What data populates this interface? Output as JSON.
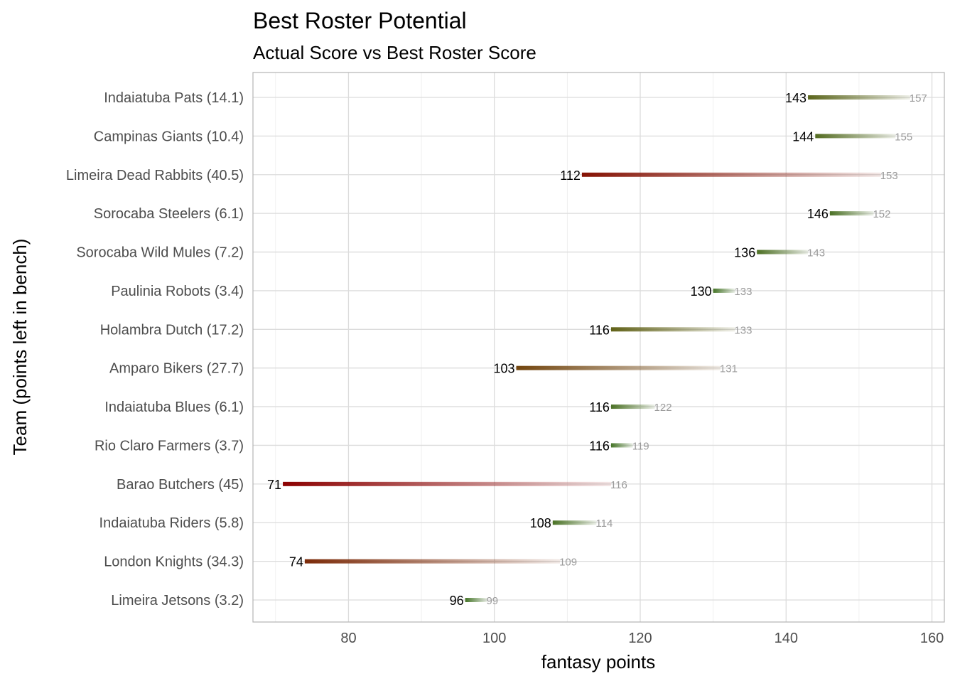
{
  "chart_data": {
    "type": "bar",
    "subtype": "range-segment",
    "title": "Best Roster Potential",
    "subtitle": "Actual Score vs Best Roster Score",
    "xlabel": "fantasy points",
    "ylabel": "Team (points left in bench)",
    "xlim": [
      66.9,
      161.7
    ],
    "xticks": [
      80,
      100,
      120,
      140,
      160
    ],
    "grid": true,
    "legend": "none",
    "colors": {
      "low_gap": "#3f7a2c",
      "mid_gap": "#6b5a12",
      "high_gap": "#8b0000",
      "actual_label": "#000000",
      "best_label": "#9a9a9a"
    },
    "categories": [
      "Indaiatuba Pats (14.1)",
      "Campinas Giants (10.4)",
      "Limeira Dead Rabbits (40.5)",
      "Sorocaba Steelers (6.1)",
      "Sorocaba Wild Mules (7.2)",
      "Paulinia Robots (3.4)",
      "Holambra Dutch (17.2)",
      "Amparo Bikers (27.7)",
      "Indaiatuba Blues (6.1)",
      "Rio Claro Farmers (3.7)",
      "Barao Butchers (45)",
      "Indaiatuba Riders (5.8)",
      "London Knights (34.3)",
      "Limeira Jetsons (3.2)"
    ],
    "bench": [
      14.1,
      10.4,
      40.5,
      6.1,
      7.2,
      3.4,
      17.2,
      27.7,
      6.1,
      3.7,
      45,
      5.8,
      34.3,
      3.2
    ],
    "actual": [
      143,
      144,
      112,
      146,
      136,
      130,
      116,
      103,
      116,
      116,
      71,
      108,
      74,
      96
    ],
    "best": [
      157,
      155,
      153,
      152,
      143,
      133,
      133,
      131,
      122,
      119,
      116,
      114,
      109,
      99
    ]
  }
}
